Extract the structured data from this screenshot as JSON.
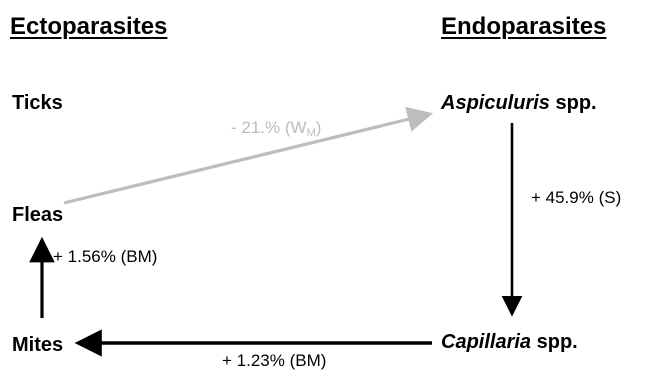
{
  "headings": {
    "left": "Ectoparasites",
    "right": "Endoparasites"
  },
  "nodes": {
    "ticks": "Ticks",
    "fleas": "Fleas",
    "mites": "Mites",
    "aspiculuris_genus": "Aspiculuris",
    "aspiculuris_suffix": " spp.",
    "capillaria_genus": "Capillaria",
    "capillaria_suffix": " spp."
  },
  "edges": {
    "fleas_to_aspiculuris": {
      "prefix": "- 21.% (W",
      "subscript": "M",
      "suffix": ")",
      "color": "#bdbdbd"
    },
    "aspiculuris_to_capillaria": {
      "label": "+ 45.9% (S)",
      "color": "#000000"
    },
    "capillaria_to_mites": {
      "label": "+ 1.23% (BM)",
      "color": "#000000"
    },
    "mites_to_fleas": {
      "label": "+ 1.56% (BM)",
      "color": "#000000"
    }
  }
}
